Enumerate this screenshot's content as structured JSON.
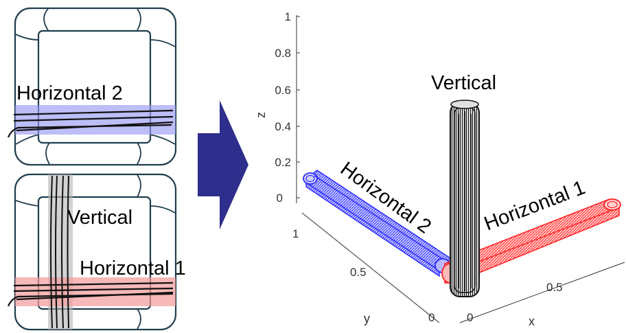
{
  "left_panel": {
    "top_box": {
      "band_label": "Horizontal 2"
    },
    "bottom_box": {
      "vertical_label": "Vertical",
      "band_label": "Horizontal 1"
    }
  },
  "plot3d": {
    "axes": {
      "z_label": "z",
      "y_label": "y",
      "x_label": "x",
      "z_ticks": [
        "0",
        "0.2",
        "0.4",
        "0.6",
        "0.8",
        "1"
      ],
      "y_ticks": [
        "0",
        "0.5",
        "1"
      ],
      "x_ticks": [
        "0",
        "0.5"
      ]
    },
    "labels": {
      "vertical": "Vertical",
      "horizontal_1": "Horizontal 1",
      "horizontal_2": "Horizontal 2"
    }
  },
  "colors": {
    "frame": "#1f3d4e",
    "blue": "#2b2bff",
    "red": "#ff2020",
    "black": "#111111",
    "arrow": "#2e2e8c",
    "blue_band": "#9a9af2",
    "red_band": "#f29a9a",
    "gray_band": "#b4b4b4"
  }
}
